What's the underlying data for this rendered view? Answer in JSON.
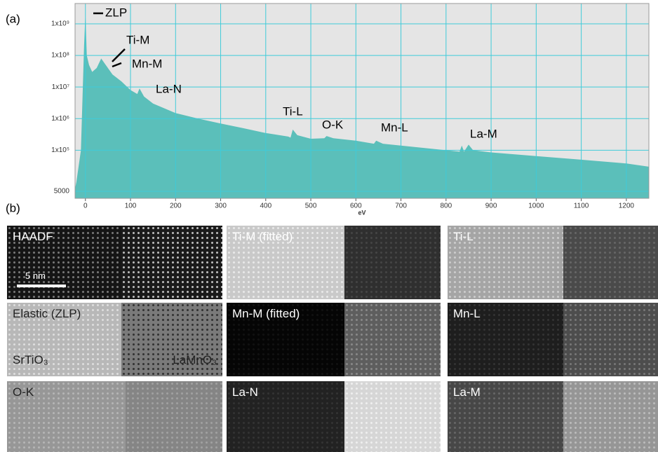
{
  "chart_data": {
    "type": "area",
    "x_label": "eV",
    "log_y": true,
    "grid": true,
    "color": "#5bbfba",
    "grid_color": "#3fcbd9",
    "panel_label": "(a)",
    "x": [
      -23,
      -20,
      -10,
      -3,
      0,
      3,
      8,
      15,
      25,
      35,
      45,
      60,
      80,
      100,
      115,
      120,
      130,
      150,
      200,
      250,
      300,
      350,
      400,
      450,
      455,
      460,
      470,
      500,
      530,
      535,
      550,
      600,
      640,
      645,
      660,
      700,
      800,
      830,
      835,
      840,
      850,
      860,
      900,
      1000,
      1100,
      1200,
      1250
    ],
    "values": [
      6000,
      10000,
      100000,
      200000000,
      2200000000,
      100000000,
      50000000,
      30000000,
      40000000,
      80000000,
      50000000,
      25000000,
      15000000,
      8000000,
      6000000,
      9000000,
      5000000,
      3000000,
      1500000,
      1000000,
      700000,
      500000,
      350000,
      270000,
      250000,
      450000,
      300000,
      230000,
      240000,
      280000,
      240000,
      200000,
      160000,
      200000,
      160000,
      140000,
      100000,
      90000,
      140000,
      90000,
      150000,
      100000,
      85000,
      65000,
      50000,
      38000,
      30000
    ],
    "xlim": [
      -23,
      1250
    ],
    "ylim": [
      3000,
      4400000000
    ],
    "xticks": [
      0,
      100,
      200,
      300,
      400,
      500,
      600,
      700,
      800,
      900,
      1000,
      1100,
      1200
    ],
    "yticks": [
      5000,
      {
        "value": 100000,
        "label": "1x10⁵"
      },
      {
        "value": 1000000,
        "label": "1x10⁶"
      },
      {
        "value": 10000000,
        "label": "1x10⁷"
      },
      {
        "value": 100000000,
        "label": "1x10⁸"
      },
      {
        "value": 1000000000,
        "label": "1x10⁹"
      }
    ],
    "annotations": [
      "ZLP",
      "Ti-M",
      "Mn-M",
      "La-N",
      "Ti-L",
      "O-K",
      "Mn-L",
      "La-M"
    ]
  },
  "images_label": "(b)",
  "panels": [
    {
      "label": "HAADF",
      "scale_bar": "5 nm"
    },
    {
      "label": "Ti-M (fitted)"
    },
    {
      "label": "Ti-L"
    },
    {
      "label": "Elastic (ZLP)",
      "left_region": "SrTiO₃",
      "right_region": "LaMnO₃"
    },
    {
      "label": "Mn-M (fitted)"
    },
    {
      "label": "Mn-L"
    },
    {
      "label": "O-K"
    },
    {
      "label": "La-N"
    },
    {
      "label": "La-M"
    }
  ]
}
